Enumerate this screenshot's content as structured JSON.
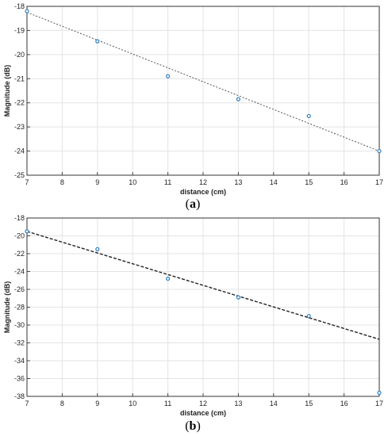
{
  "chart_data": [
    {
      "type": "scatter",
      "caption_letter": "a",
      "xlabel": "distance (cm)",
      "ylabel": "Magnitude (dB)",
      "xlim": [
        7,
        17
      ],
      "ylim": [
        -25,
        -18
      ],
      "xticks": [
        7,
        8,
        9,
        10,
        11,
        12,
        13,
        14,
        15,
        16,
        17
      ],
      "yticks": [
        -18,
        -19,
        -20,
        -21,
        -22,
        -23,
        -24,
        -25
      ],
      "grid": true,
      "series": [
        {
          "points": [
            [
              7,
              -18.2
            ],
            [
              9,
              -19.45
            ],
            [
              11,
              -20.9
            ],
            [
              13,
              -21.85
            ],
            [
              15,
              -22.55
            ],
            [
              17,
              -24.0
            ]
          ],
          "color": "#2f7fc1"
        }
      ],
      "fit_line": {
        "x": [
          7,
          17
        ],
        "y": [
          -18.25,
          -24.0
        ],
        "color": "#555555",
        "style": "dashed"
      }
    },
    {
      "type": "scatter",
      "caption_letter": "b",
      "xlabel": "distance (cm)",
      "ylabel": "Magnitude (dB)",
      "xlim": [
        7,
        17
      ],
      "ylim": [
        -38,
        -18
      ],
      "xticks": [
        7,
        8,
        9,
        10,
        11,
        12,
        13,
        14,
        15,
        16,
        17
      ],
      "yticks": [
        -18,
        -20,
        -22,
        -24,
        -26,
        -28,
        -30,
        -32,
        -34,
        -36,
        -38
      ],
      "grid": true,
      "series": [
        {
          "points": [
            [
              7,
              -19.5
            ],
            [
              9,
              -21.5
            ],
            [
              11,
              -24.8
            ],
            [
              13,
              -26.9
            ],
            [
              15,
              -29.0
            ],
            [
              17,
              -37.6
            ]
          ],
          "color": "#2f7fc1"
        }
      ],
      "fit_line": {
        "x": [
          7,
          17
        ],
        "y": [
          -19.5,
          -31.6
        ],
        "color": "#222222",
        "style": "dashed"
      }
    }
  ]
}
